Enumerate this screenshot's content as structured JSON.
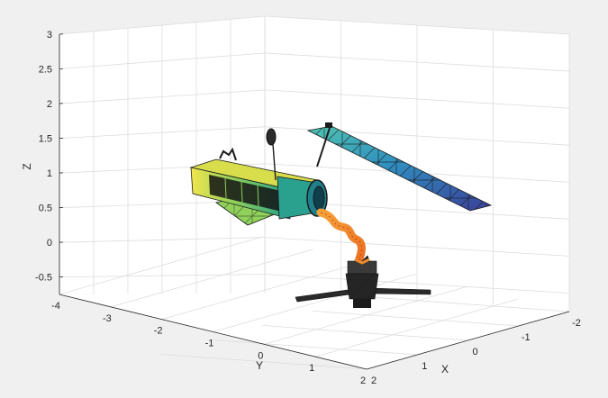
{
  "chart_data": {
    "type": "3d-scene",
    "title": "",
    "xlabel": "X",
    "ylabel": "Y",
    "zlabel": "Z",
    "grid": true,
    "xlim": [
      -2,
      2
    ],
    "ylim": [
      -4,
      2
    ],
    "zlim": [
      -0.75,
      3
    ],
    "x_ticks": [
      "-2",
      "-1",
      "0",
      "1",
      "2"
    ],
    "y_ticks": [
      "-4",
      "-3",
      "-2",
      "-1",
      "0",
      "1",
      "2"
    ],
    "z_ticks": [
      "-0.5",
      "0",
      "0.5",
      "1",
      "1.5",
      "2",
      "2.5",
      "3"
    ],
    "colors": {
      "background": "#f0f0f0",
      "axes_face": "#ffffff",
      "grid": "#dddddd",
      "axis_line": "#262626",
      "panel_light": "#65c4a8",
      "panel_dark": "#3b4f9a",
      "body_yellow": "#e8e24a",
      "body_teal": "#2f9f8f",
      "arm_orange": "#f08a2c",
      "capsule_dark": "#2a2a2a"
    },
    "objects": [
      "satellite-body",
      "solar-panel",
      "robotic-arm",
      "capsule-spacecraft"
    ]
  }
}
